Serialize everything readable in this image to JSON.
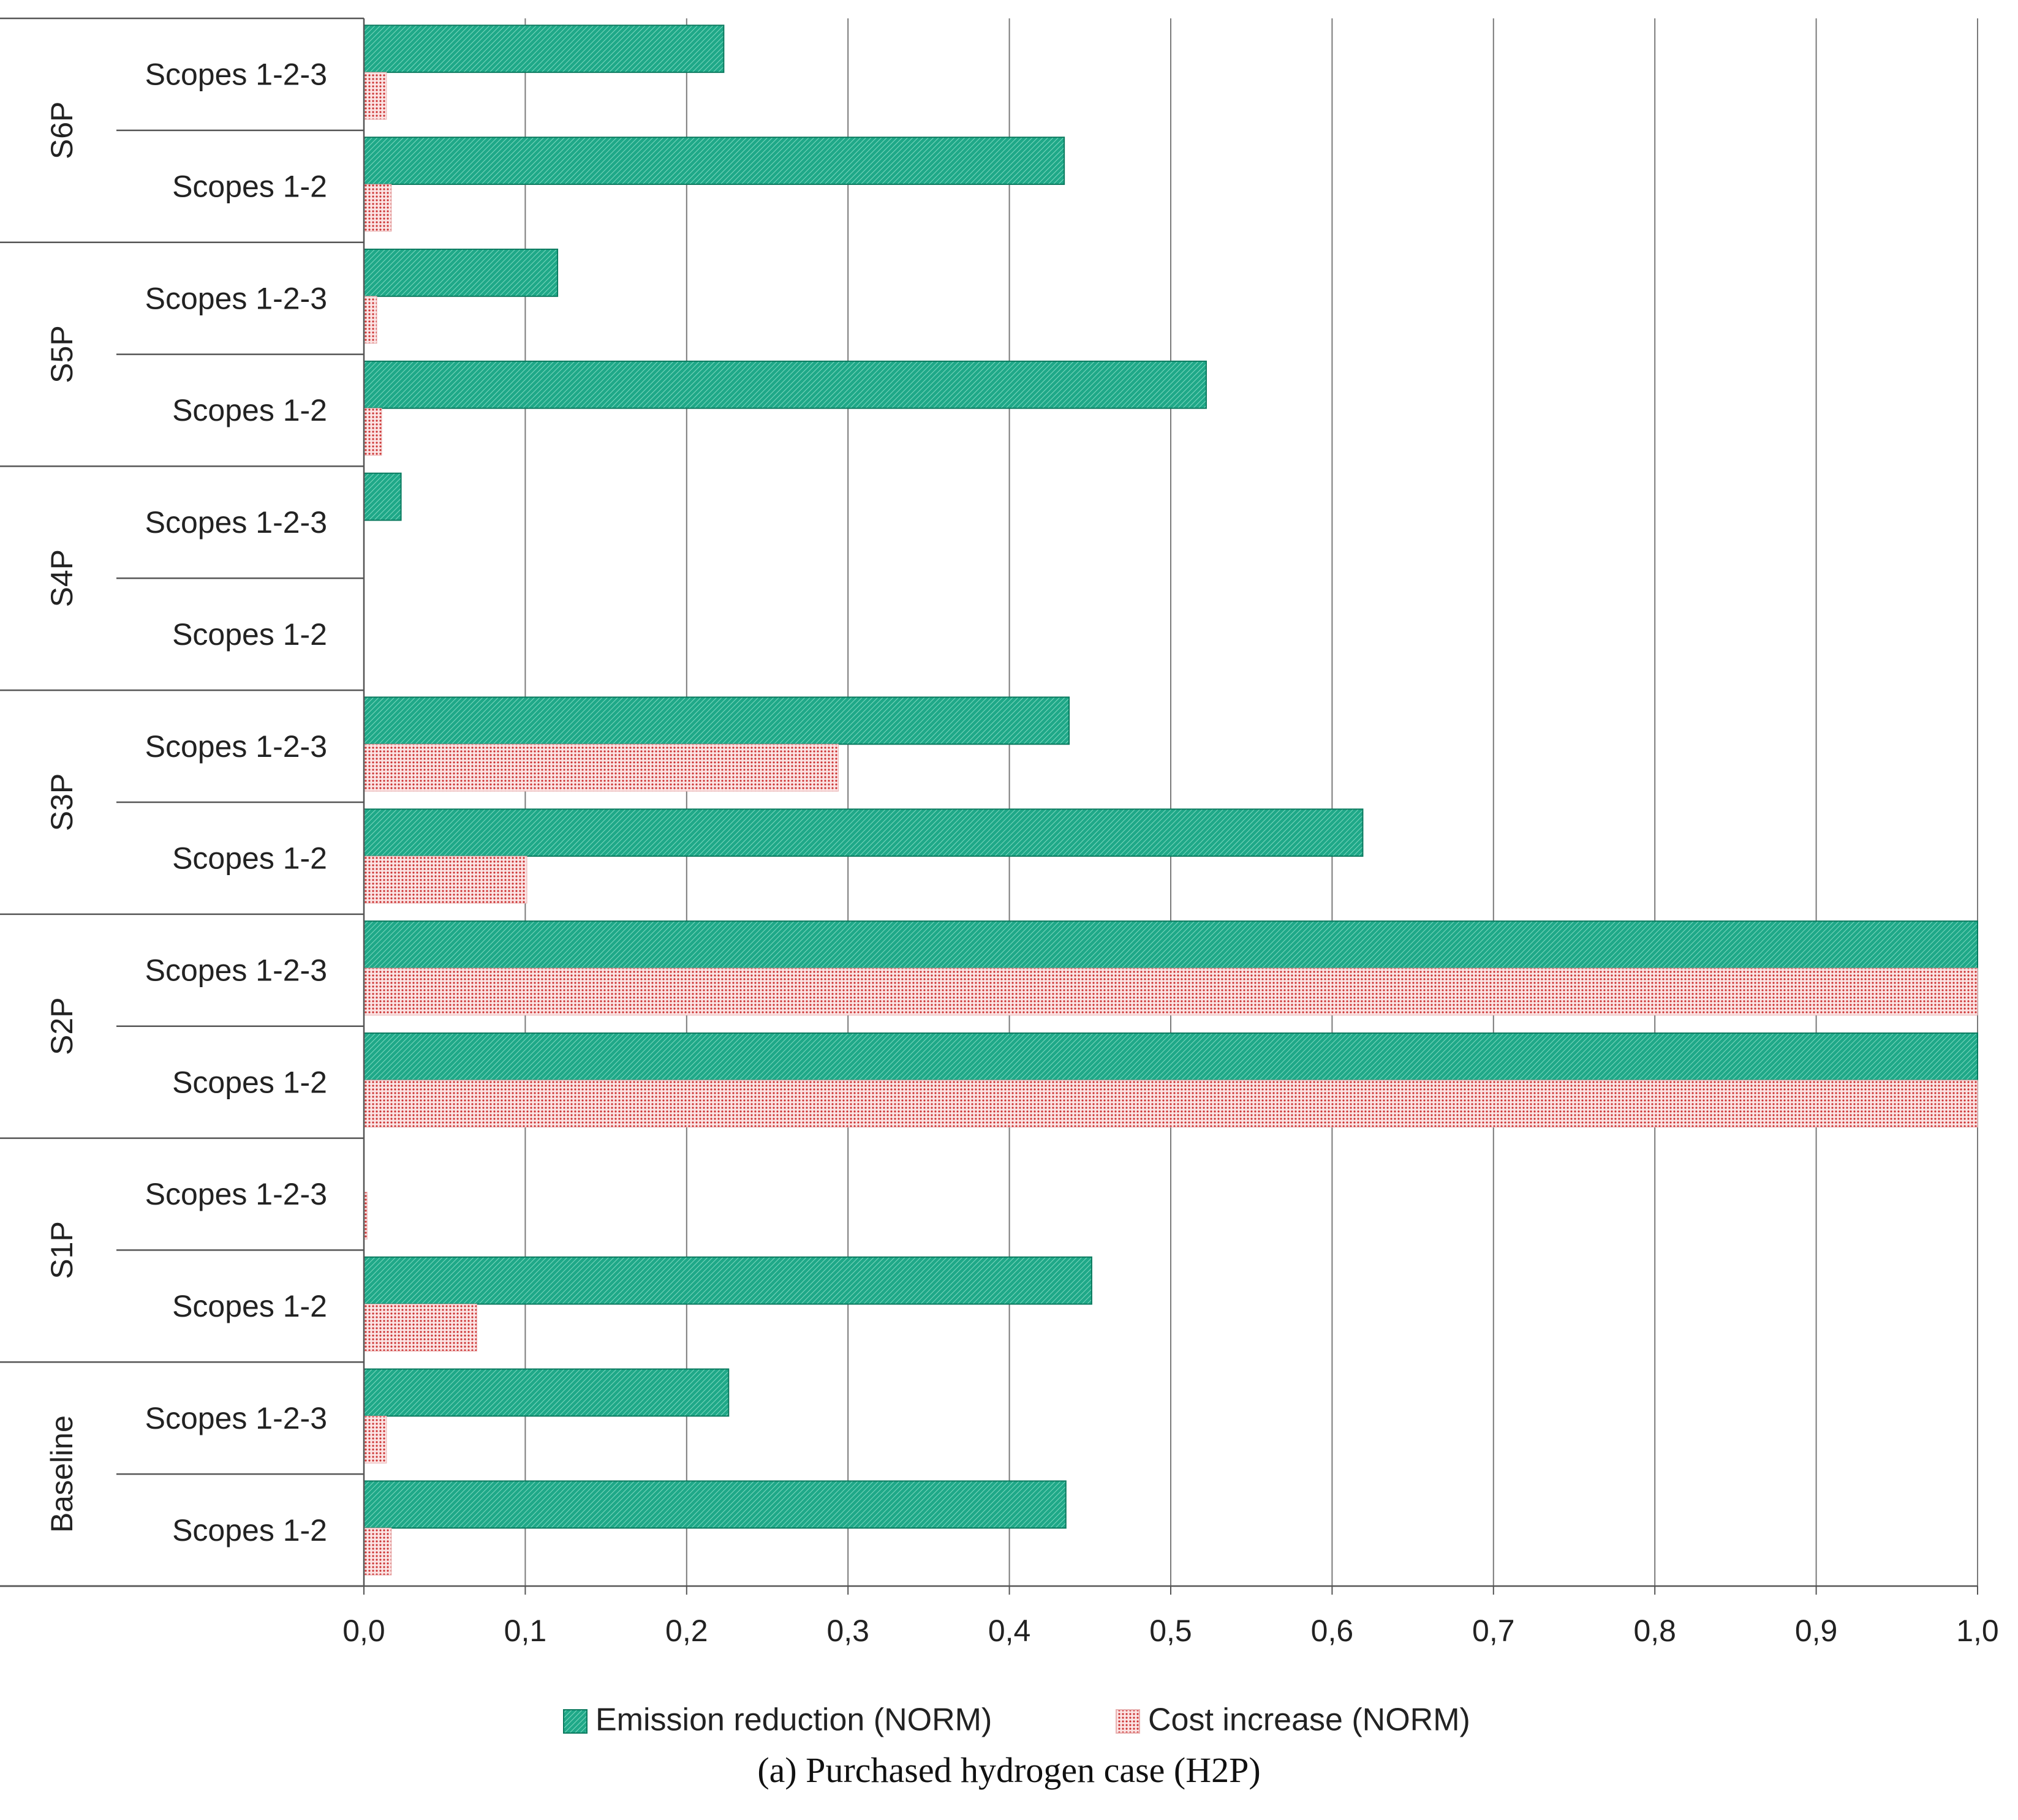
{
  "chart_data": {
    "type": "bar",
    "orientation": "horizontal",
    "groups": [
      {
        "label": "S6P",
        "rows": [
          {
            "label": "Scopes 1-2-3",
            "emission": 0.223,
            "cost": 0.014
          },
          {
            "label": "Scopes 1-2",
            "emission": 0.434,
            "cost": 0.017
          }
        ]
      },
      {
        "label": "S5P",
        "rows": [
          {
            "label": "Scopes 1-2-3",
            "emission": 0.12,
            "cost": 0.008
          },
          {
            "label": "Scopes 1-2",
            "emission": 0.522,
            "cost": 0.011
          }
        ]
      },
      {
        "label": "S4P",
        "rows": [
          {
            "label": "Scopes 1-2-3",
            "emission": 0.023,
            "cost": 0.0
          },
          {
            "label": "Scopes 1-2",
            "emission": 0.0,
            "cost": 0.0
          }
        ]
      },
      {
        "label": "S3P",
        "rows": [
          {
            "label": "Scopes 1-2-3",
            "emission": 0.437,
            "cost": 0.294
          },
          {
            "label": "Scopes 1-2",
            "emission": 0.619,
            "cost": 0.101
          }
        ]
      },
      {
        "label": "S2P",
        "rows": [
          {
            "label": "Scopes 1-2-3",
            "emission": 1.0,
            "cost": 1.0
          },
          {
            "label": "Scopes 1-2",
            "emission": 1.0,
            "cost": 1.0
          }
        ]
      },
      {
        "label": "S1P",
        "rows": [
          {
            "label": "Scopes 1-2-3",
            "emission": 0.0,
            "cost": 0.002
          },
          {
            "label": "Scopes 1-2",
            "emission": 0.451,
            "cost": 0.07
          }
        ]
      },
      {
        "label": "Baseline",
        "rows": [
          {
            "label": "Scopes 1-2-3",
            "emission": 0.226,
            "cost": 0.014
          },
          {
            "label": "Scopes 1-2",
            "emission": 0.435,
            "cost": 0.017
          }
        ]
      }
    ],
    "series": [
      {
        "name": "Emission reduction (NORM)",
        "key": "emission",
        "color": "#1fa888",
        "pattern": "diagonal-hatch"
      },
      {
        "name": "Cost increase (NORM)",
        "key": "cost",
        "color": "#cc3333",
        "pattern": "dots"
      }
    ],
    "xlim": [
      0,
      1
    ],
    "xticks": [
      "0,0",
      "0,1",
      "0,2",
      "0,3",
      "0,4",
      "0,5",
      "0,6",
      "0,7",
      "0,8",
      "0,9",
      "1,0"
    ],
    "grid": true,
    "legend_position": "bottom"
  },
  "caption": "(a) Purchased hydrogen case (H2P)"
}
